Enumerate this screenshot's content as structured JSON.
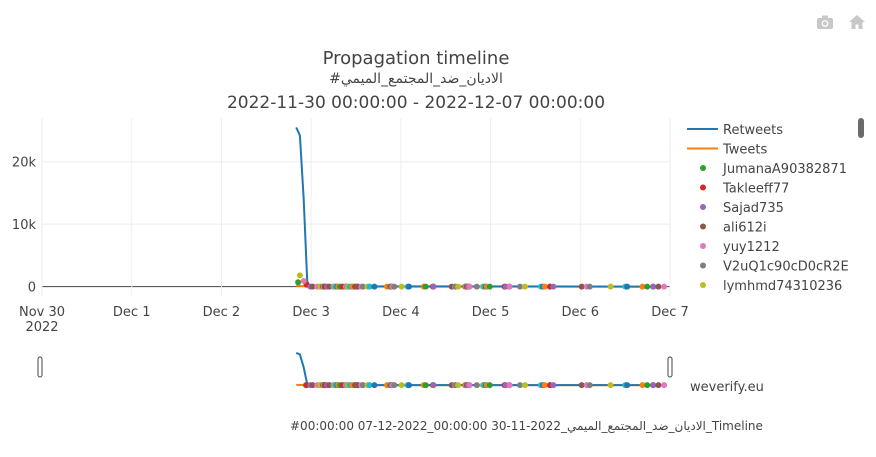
{
  "toolbar": {
    "camera_icon": "camera-icon",
    "home_icon": "home-icon"
  },
  "credit": "weverify.eu",
  "footer_filename": "#00:00:00 07-12-2022_00:00:00 30-11-2022_الاديان_ضد_المجتمع_الميمي_Timeline",
  "chart_data": {
    "type": "line",
    "title": "Propagation timeline",
    "subtitle": "#الاديان_ضد_المجتمع_الميمي",
    "date_range": "2022-11-30 00:00:00 - 2022-12-07 00:00:00",
    "x_ticks": [
      "Nov 30\n2022",
      "Dec 1",
      "Dec 2",
      "Dec 3",
      "Dec 4",
      "Dec 5",
      "Dec 6",
      "Dec 7"
    ],
    "y_ticks": [
      "0",
      "10k",
      "20k"
    ],
    "xlim": [
      "2022-11-30",
      "2022-12-07"
    ],
    "ylim": [
      -1500,
      27000
    ],
    "grid": true,
    "legend_position": "right",
    "series": [
      {
        "name": "Retweets",
        "color": "#1f77b4",
        "x": [
          "2022-12-02 20:00",
          "2022-12-02 21:00",
          "2022-12-02 22:00",
          "2022-12-02 23:00",
          "2022-12-03 03:00",
          "2022-12-04 00:00",
          "2022-12-05 00:00",
          "2022-12-06 00:00",
          "2022-12-06 23:00"
        ],
        "y": [
          25500,
          24200,
          14000,
          200,
          60,
          40,
          30,
          20,
          10
        ]
      },
      {
        "name": "Tweets",
        "color": "#ff7f0e",
        "x": [
          "2022-12-02 20:00",
          "2022-12-02 21:00",
          "2022-12-02 22:00",
          "2022-12-02 23:00",
          "2022-12-03 03:00",
          "2022-12-04 00:00",
          "2022-12-05 00:00",
          "2022-12-06 00:00",
          "2022-12-06 23:00"
        ],
        "y": [
          150,
          120,
          80,
          30,
          10,
          8,
          6,
          5,
          4
        ]
      }
    ],
    "user_legend": [
      {
        "name": "JumanaA90382871",
        "color": "#2ca02c"
      },
      {
        "name": "Takleeff77",
        "color": "#d62728"
      },
      {
        "name": "Sajad735",
        "color": "#9467bd"
      },
      {
        "name": "ali612i",
        "color": "#8c564b"
      },
      {
        "name": "yuy1212",
        "color": "#e377c2"
      },
      {
        "name": "V2uQ1c90cD0cR2E",
        "color": "#7f7f7f"
      },
      {
        "name": "lymhmd74310236",
        "color": "#bcbd22"
      }
    ],
    "extra_marker_color": "#17becf"
  }
}
